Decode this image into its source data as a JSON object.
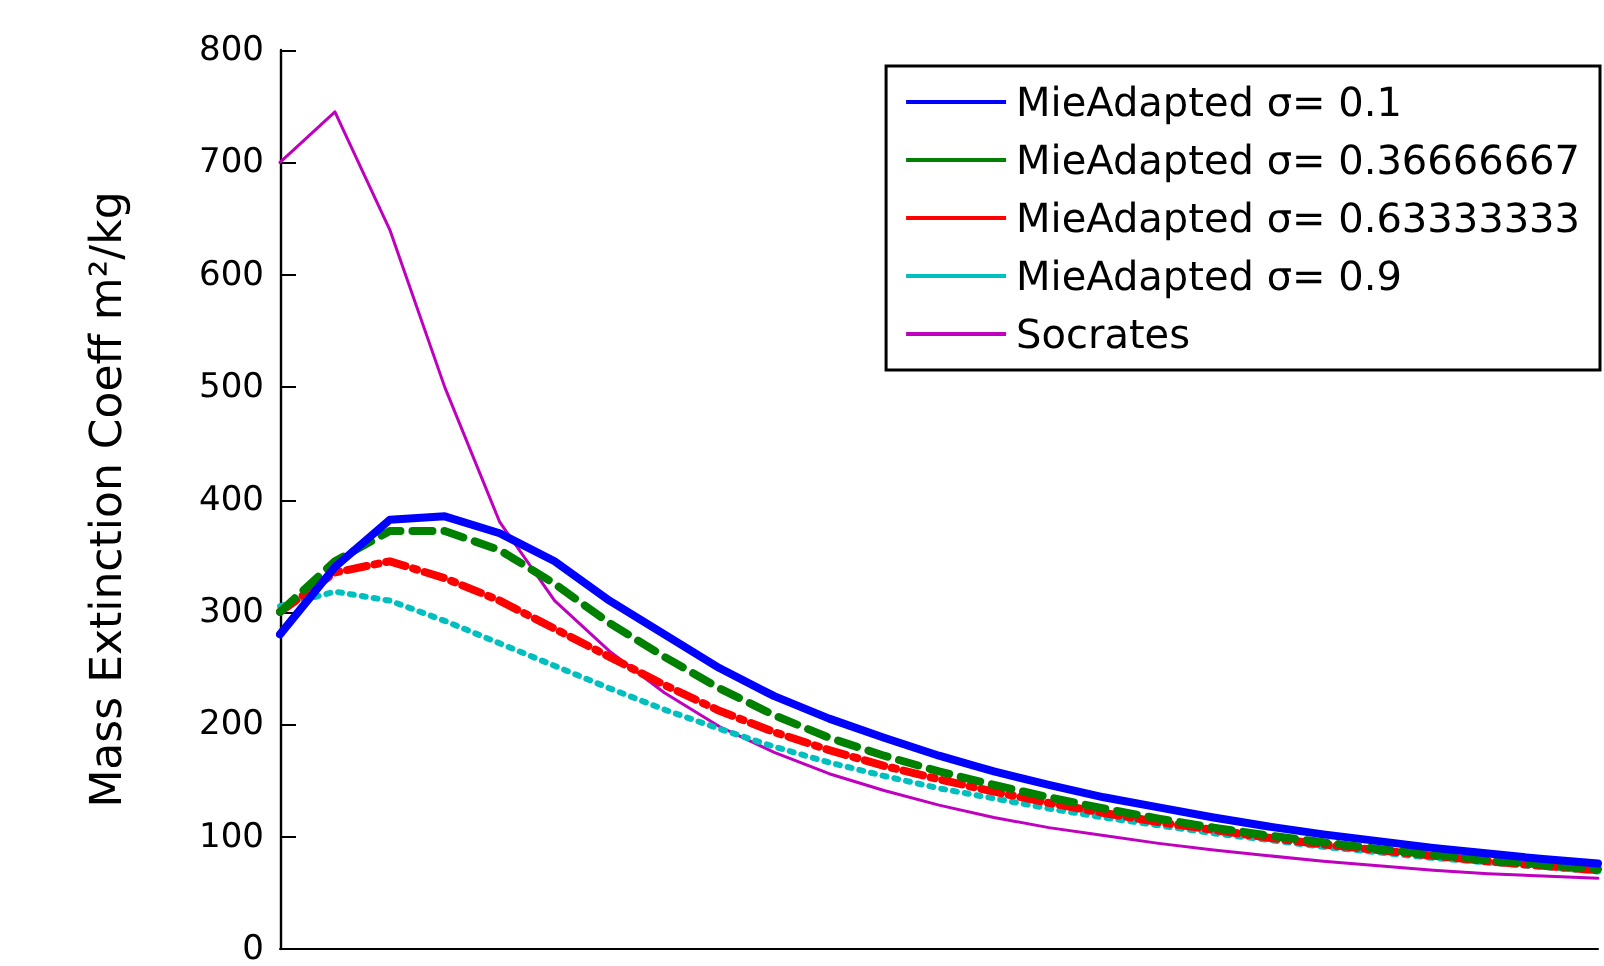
{
  "chart_data": {
    "type": "line",
    "ylabel": "Mass Extinction Coeff m²/kg",
    "categories": [
      null,
      null,
      null,
      null,
      null,
      null,
      null,
      null,
      null,
      null,
      null,
      null,
      null,
      null,
      null,
      null,
      null,
      null,
      null,
      null,
      null,
      null,
      null,
      null,
      null
    ],
    "ylim": [
      0,
      800
    ],
    "yticks": [
      0,
      100,
      200,
      300,
      400,
      500,
      600,
      700,
      800
    ],
    "grid": false,
    "legend": "top right",
    "marker": "none",
    "series": [
      {
        "name": "MieAdapted σ= 0.1",
        "color": "#0000ff",
        "line_style": "solid",
        "values": [
          280,
          340,
          382,
          385,
          370,
          345,
          310,
          280,
          250,
          225,
          205,
          188,
          172,
          158,
          146,
          135,
          126,
          117,
          109,
          102,
          96,
          90,
          85,
          80,
          76
        ]
      },
      {
        "name": "MieAdapted σ= 0.36666667",
        "color": "#008000",
        "line_style": "dashed",
        "values": [
          300,
          345,
          372,
          372,
          355,
          325,
          290,
          260,
          232,
          208,
          188,
          172,
          158,
          146,
          135,
          125,
          116,
          108,
          101,
          95,
          89,
          84,
          79,
          75,
          71
        ]
      },
      {
        "name": "MieAdapted σ= 0.63333333",
        "color": "#ff0000",
        "line_style": "dashdot",
        "values": [
          300,
          335,
          345,
          330,
          310,
          285,
          260,
          235,
          212,
          193,
          177,
          163,
          151,
          140,
          130,
          121,
          113,
          106,
          99,
          93,
          88,
          83,
          78,
          74,
          70
        ]
      },
      {
        "name": "MieAdapted σ= 0.9",
        "color": "#00bfbf",
        "line_style": "dotted",
        "values": [
          305,
          318,
          310,
          292,
          272,
          252,
          232,
          213,
          196,
          180,
          166,
          154,
          143,
          134,
          125,
          117,
          110,
          103,
          97,
          91,
          86,
          81,
          77,
          73,
          69
        ]
      },
      {
        "name": "Socrates",
        "color": "#bf00bf",
        "line_style": "solid",
        "values": [
          700,
          745,
          640,
          500,
          380,
          310,
          265,
          228,
          198,
          175,
          156,
          141,
          128,
          117,
          108,
          101,
          94,
          88,
          83,
          78,
          74,
          70,
          67,
          65,
          63
        ]
      }
    ]
  }
}
